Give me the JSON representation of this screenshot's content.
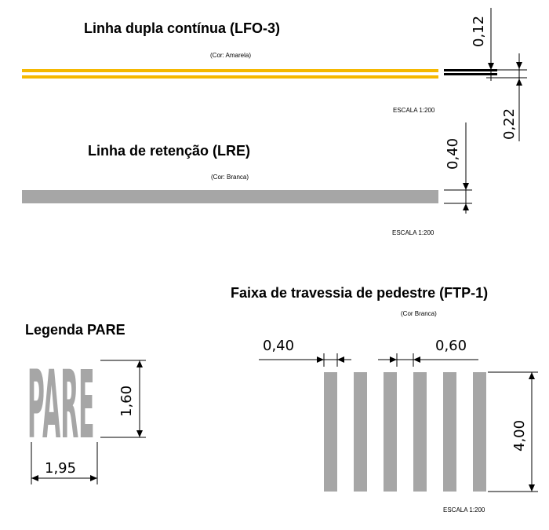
{
  "sections": {
    "lfo3": {
      "title": "Linha dupla contínua (LFO-3)",
      "color_note": "(Cor: Amarela)",
      "scale": "ESCALA 1:200",
      "dim_a": "0,12",
      "dim_b": "0,22",
      "color": "#f5b800"
    },
    "lre": {
      "title": "Linha de retenção (LRE)",
      "color_note": "(Cor: Branca)",
      "scale": "ESCALA 1:200",
      "dim": "0,40",
      "color": "#a6a6a6"
    },
    "pare": {
      "title": "Legenda PARE",
      "word": "PARE",
      "dim_height": "1,60",
      "dim_width": "1,95"
    },
    "ftp1": {
      "title": "Faixa de travessia de pedestre (FTP-1)",
      "color_note": "(Cor Branca)",
      "scale": "ESCALA 1:200",
      "dim_stripe": "0,40",
      "dim_gap": "0,60",
      "dim_length": "4,00",
      "stripe_count": 6
    }
  }
}
